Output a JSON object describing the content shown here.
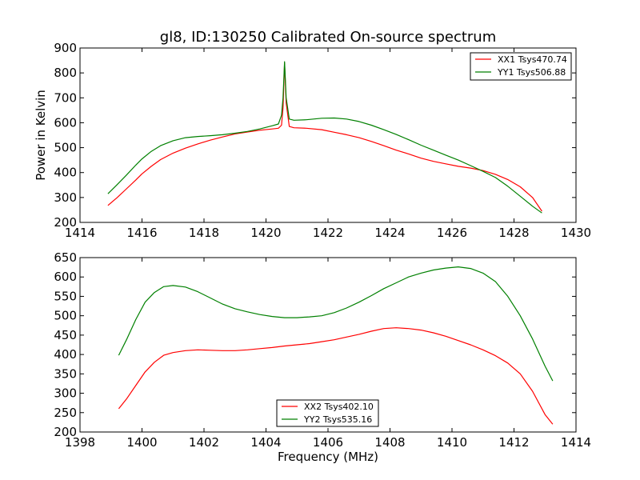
{
  "chart_data": [
    {
      "type": "line",
      "title": "gl8, ID:130250 Calibrated On-source spectrum",
      "xlabel": "",
      "ylabel": "Power in Kelvin",
      "xlim": [
        1414,
        1430
      ],
      "ylim": [
        200,
        900
      ],
      "xticks": [
        "1414",
        "1416",
        "1418",
        "1420",
        "1422",
        "1424",
        "1426",
        "1428",
        "1430"
      ],
      "yticks": [
        "200",
        "300",
        "400",
        "500",
        "600",
        "700",
        "800",
        "900"
      ],
      "legend_position": "top-right",
      "series": [
        {
          "name": "XX1 Tsys470.74",
          "color": "#ff0000",
          "points": [
            [
              1414.9,
              268
            ],
            [
              1415.2,
              300
            ],
            [
              1415.5,
              335
            ],
            [
              1415.8,
              370
            ],
            [
              1416.0,
              395
            ],
            [
              1416.3,
              425
            ],
            [
              1416.6,
              452
            ],
            [
              1417.0,
              478
            ],
            [
              1417.4,
              498
            ],
            [
              1417.8,
              515
            ],
            [
              1418.2,
              530
            ],
            [
              1418.6,
              543
            ],
            [
              1419.0,
              555
            ],
            [
              1419.4,
              563
            ],
            [
              1419.8,
              570
            ],
            [
              1420.2,
              575
            ],
            [
              1420.4,
              578
            ],
            [
              1420.5,
              590
            ],
            [
              1420.55,
              660
            ],
            [
              1420.6,
              840
            ],
            [
              1420.65,
              680
            ],
            [
              1420.75,
              585
            ],
            [
              1420.9,
              580
            ],
            [
              1421.3,
              578
            ],
            [
              1421.8,
              572
            ],
            [
              1422.2,
              562
            ],
            [
              1422.6,
              552
            ],
            [
              1423.0,
              540
            ],
            [
              1423.4,
              525
            ],
            [
              1423.8,
              508
            ],
            [
              1424.2,
              490
            ],
            [
              1424.6,
              475
            ],
            [
              1425.0,
              458
            ],
            [
              1425.4,
              445
            ],
            [
              1425.8,
              435
            ],
            [
              1426.2,
              425
            ],
            [
              1426.6,
              418
            ],
            [
              1427.0,
              408
            ],
            [
              1427.4,
              393
            ],
            [
              1427.8,
              372
            ],
            [
              1428.2,
              343
            ],
            [
              1428.6,
              300
            ],
            [
              1428.9,
              245
            ]
          ]
        },
        {
          "name": "YY1 Tsys506.88",
          "color": "#008000",
          "points": [
            [
              1414.9,
              315
            ],
            [
              1415.2,
              352
            ],
            [
              1415.5,
              390
            ],
            [
              1415.8,
              430
            ],
            [
              1416.0,
              455
            ],
            [
              1416.3,
              485
            ],
            [
              1416.6,
              508
            ],
            [
              1417.0,
              528
            ],
            [
              1417.4,
              540
            ],
            [
              1417.8,
              545
            ],
            [
              1418.2,
              548
            ],
            [
              1418.6,
              552
            ],
            [
              1419.0,
              558
            ],
            [
              1419.4,
              565
            ],
            [
              1419.8,
              575
            ],
            [
              1420.2,
              588
            ],
            [
              1420.4,
              595
            ],
            [
              1420.5,
              630
            ],
            [
              1420.55,
              700
            ],
            [
              1420.6,
              845
            ],
            [
              1420.65,
              700
            ],
            [
              1420.75,
              615
            ],
            [
              1420.9,
              610
            ],
            [
              1421.3,
              612
            ],
            [
              1421.8,
              618
            ],
            [
              1422.2,
              619
            ],
            [
              1422.6,
              615
            ],
            [
              1423.0,
              605
            ],
            [
              1423.4,
              590
            ],
            [
              1423.8,
              572
            ],
            [
              1424.2,
              553
            ],
            [
              1424.6,
              532
            ],
            [
              1425.0,
              510
            ],
            [
              1425.4,
              490
            ],
            [
              1425.8,
              470
            ],
            [
              1426.2,
              450
            ],
            [
              1426.6,
              428
            ],
            [
              1427.0,
              405
            ],
            [
              1427.4,
              380
            ],
            [
              1427.8,
              345
            ],
            [
              1428.2,
              305
            ],
            [
              1428.6,
              265
            ],
            [
              1428.9,
              238
            ]
          ]
        }
      ]
    },
    {
      "type": "line",
      "title": "",
      "xlabel": "Frequency (MHz)",
      "ylabel": "",
      "xlim": [
        1398,
        1414
      ],
      "ylim": [
        200,
        650
      ],
      "xticks": [
        "1398",
        "1400",
        "1402",
        "1404",
        "1406",
        "1408",
        "1410",
        "1412",
        "1414"
      ],
      "yticks": [
        "200",
        "250",
        "300",
        "350",
        "400",
        "450",
        "500",
        "550",
        "600",
        "650"
      ],
      "legend_position": "bottom-center",
      "series": [
        {
          "name": "XX2 Tsys402.10",
          "color": "#ff0000",
          "points": [
            [
              1399.25,
              260
            ],
            [
              1399.5,
              285
            ],
            [
              1399.8,
              320
            ],
            [
              1400.1,
              355
            ],
            [
              1400.4,
              380
            ],
            [
              1400.7,
              398
            ],
            [
              1401.0,
              405
            ],
            [
              1401.4,
              410
            ],
            [
              1401.8,
              412
            ],
            [
              1402.2,
              411
            ],
            [
              1402.6,
              410
            ],
            [
              1403.0,
              410
            ],
            [
              1403.4,
              412
            ],
            [
              1403.8,
              415
            ],
            [
              1404.2,
              418
            ],
            [
              1404.6,
              422
            ],
            [
              1405.0,
              425
            ],
            [
              1405.4,
              428
            ],
            [
              1405.8,
              433
            ],
            [
              1406.2,
              438
            ],
            [
              1406.6,
              445
            ],
            [
              1407.0,
              452
            ],
            [
              1407.4,
              460
            ],
            [
              1407.8,
              467
            ],
            [
              1408.2,
              469
            ],
            [
              1408.6,
              467
            ],
            [
              1409.0,
              463
            ],
            [
              1409.4,
              456
            ],
            [
              1409.8,
              447
            ],
            [
              1410.2,
              436
            ],
            [
              1410.6,
              425
            ],
            [
              1411.0,
              412
            ],
            [
              1411.4,
              397
            ],
            [
              1411.8,
              378
            ],
            [
              1412.2,
              350
            ],
            [
              1412.6,
              305
            ],
            [
              1413.0,
              245
            ],
            [
              1413.25,
              220
            ]
          ]
        },
        {
          "name": "YY2 Tsys535.16",
          "color": "#008000",
          "points": [
            [
              1399.25,
              398
            ],
            [
              1399.5,
              438
            ],
            [
              1399.8,
              490
            ],
            [
              1400.1,
              535
            ],
            [
              1400.4,
              560
            ],
            [
              1400.7,
              575
            ],
            [
              1401.0,
              578
            ],
            [
              1401.4,
              574
            ],
            [
              1401.8,
              562
            ],
            [
              1402.2,
              546
            ],
            [
              1402.6,
              530
            ],
            [
              1403.0,
              518
            ],
            [
              1403.4,
              510
            ],
            [
              1403.8,
              503
            ],
            [
              1404.2,
              498
            ],
            [
              1404.6,
              495
            ],
            [
              1405.0,
              495
            ],
            [
              1405.4,
              497
            ],
            [
              1405.8,
              500
            ],
            [
              1406.2,
              508
            ],
            [
              1406.6,
              520
            ],
            [
              1407.0,
              535
            ],
            [
              1407.4,
              552
            ],
            [
              1407.8,
              570
            ],
            [
              1408.2,
              585
            ],
            [
              1408.6,
              600
            ],
            [
              1409.0,
              610
            ],
            [
              1409.4,
              618
            ],
            [
              1409.8,
              623
            ],
            [
              1410.2,
              626
            ],
            [
              1410.6,
              622
            ],
            [
              1411.0,
              610
            ],
            [
              1411.4,
              588
            ],
            [
              1411.8,
              550
            ],
            [
              1412.2,
              500
            ],
            [
              1412.6,
              440
            ],
            [
              1413.0,
              370
            ],
            [
              1413.25,
              332
            ]
          ]
        }
      ]
    }
  ]
}
